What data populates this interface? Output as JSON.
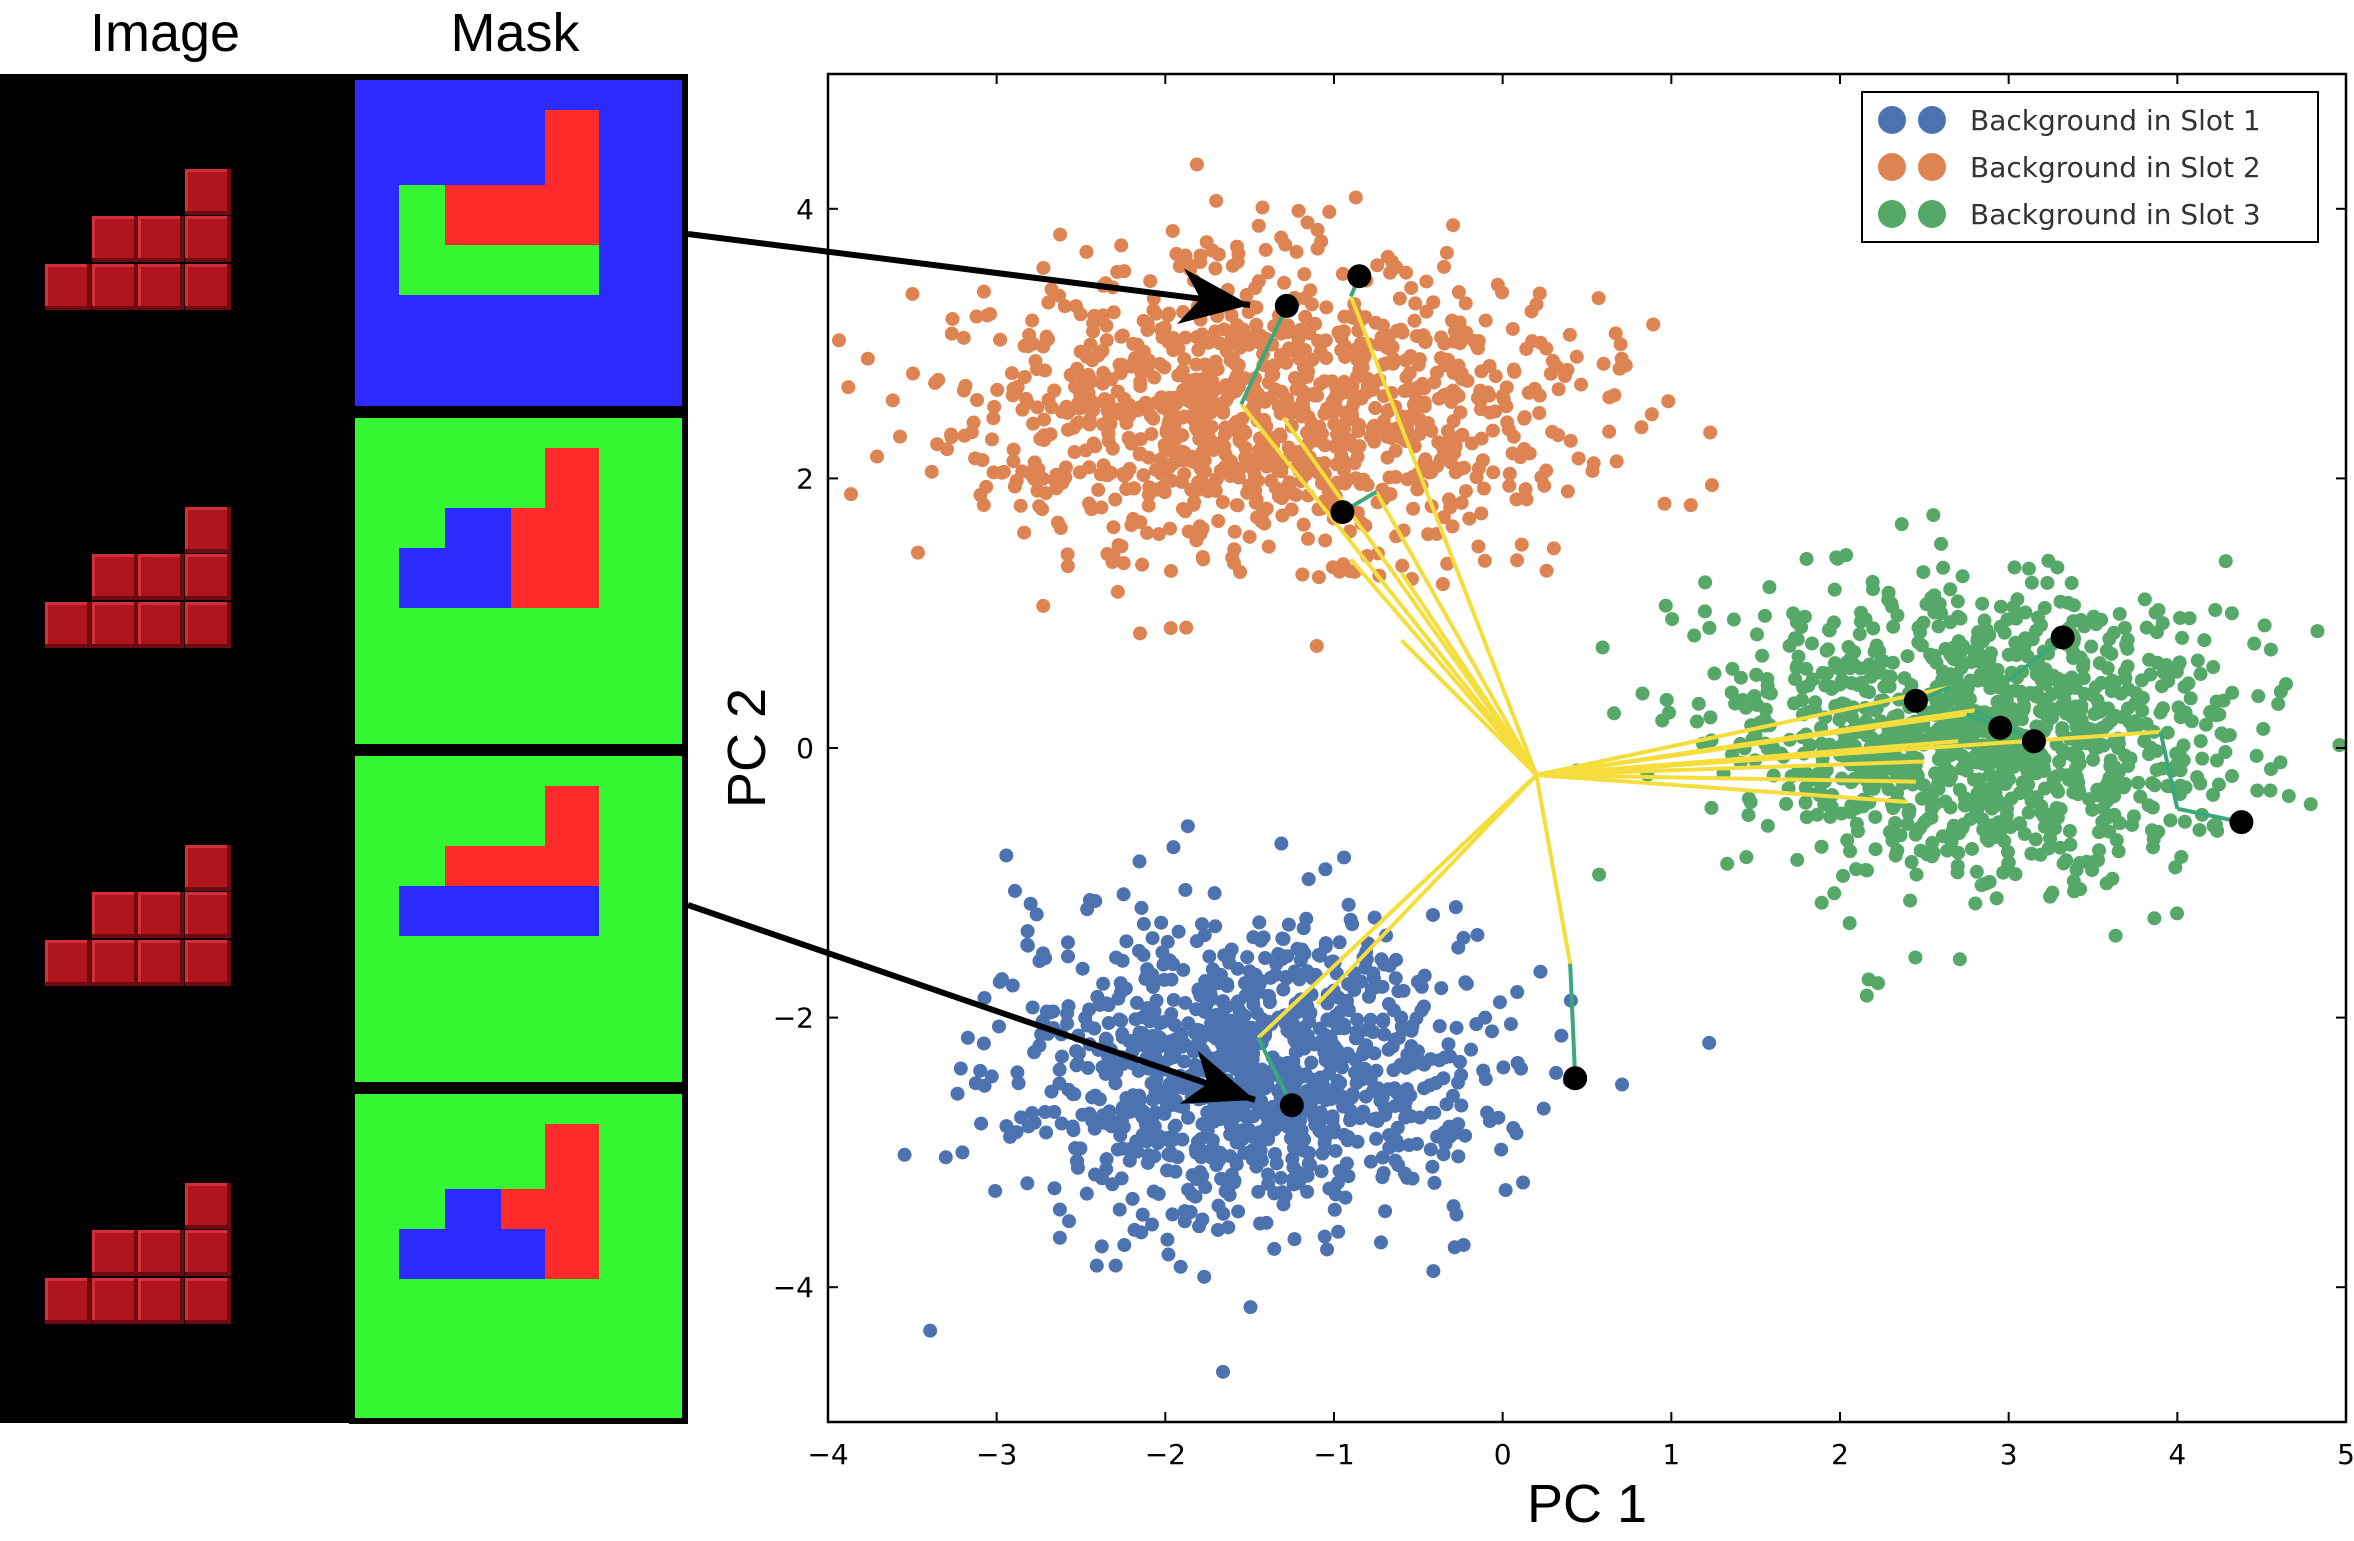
{
  "headers": {
    "image": "Image",
    "mask": "Mask"
  },
  "mask_colors": {
    "blue": "#2b2bff",
    "green": "#33f733",
    "red": "#ff2a2a"
  },
  "image_rows": 4,
  "chart_data": {
    "type": "scatter",
    "xlabel": "PC 1",
    "ylabel": "PC 2",
    "xlim": [
      -4,
      5
    ],
    "ylim": [
      -5,
      5
    ],
    "xticks": [
      "−4",
      "−3",
      "−2",
      "−1",
      "0",
      "1",
      "2",
      "3",
      "4",
      "5"
    ],
    "yticks": [
      "4",
      "2",
      "0",
      "−2",
      "−4"
    ],
    "xtick_values": [
      -4,
      -3,
      -2,
      -1,
      0,
      1,
      2,
      3,
      4,
      5
    ],
    "ytick_values": [
      4,
      2,
      0,
      -2,
      -4
    ],
    "legend_position": "top-right",
    "series": [
      {
        "name": "Background in Slot 1",
        "color": "#4c72b0",
        "center": [
          -1.5,
          -2.4
        ],
        "spread": [
          0.7,
          0.55
        ],
        "n": 1100
      },
      {
        "name": "Background in Slot 2",
        "color": "#dd8452",
        "center": [
          -1.4,
          2.5
        ],
        "spread": [
          0.9,
          0.55
        ],
        "n": 1100
      },
      {
        "name": "Background in Slot 3",
        "color": "#55a868",
        "center": [
          2.8,
          0.1
        ],
        "spread": [
          0.75,
          0.55
        ],
        "n": 1100
      }
    ],
    "highlight_points": [
      [
        -1.28,
        3.28
      ],
      [
        -0.85,
        3.5
      ],
      [
        -0.95,
        1.75
      ],
      [
        -1.25,
        -2.65
      ],
      [
        0.43,
        -2.45
      ],
      [
        2.45,
        0.35
      ],
      [
        2.95,
        0.15
      ],
      [
        3.15,
        0.05
      ],
      [
        3.32,
        0.82
      ],
      [
        4.38,
        -0.55
      ]
    ],
    "hub": [
      0.2,
      -0.2
    ],
    "yellow_ends": [
      [
        -1.55,
        2.55
      ],
      [
        -1.3,
        2.45
      ],
      [
        -0.9,
        3.35
      ],
      [
        -0.75,
        1.9
      ],
      [
        -0.9,
        1.4
      ],
      [
        -0.6,
        1.3
      ],
      [
        -0.6,
        0.8
      ],
      [
        -1.1,
        -1.9
      ],
      [
        -1.45,
        -2.15
      ],
      [
        0.4,
        -1.6
      ],
      [
        2.65,
        0.45
      ],
      [
        2.75,
        0.25
      ],
      [
        2.7,
        0.05
      ],
      [
        2.5,
        -0.1
      ],
      [
        2.45,
        -0.25
      ],
      [
        2.4,
        -0.4
      ],
      [
        3.9,
        0.12
      ],
      [
        2.8,
        0.28
      ]
    ]
  }
}
